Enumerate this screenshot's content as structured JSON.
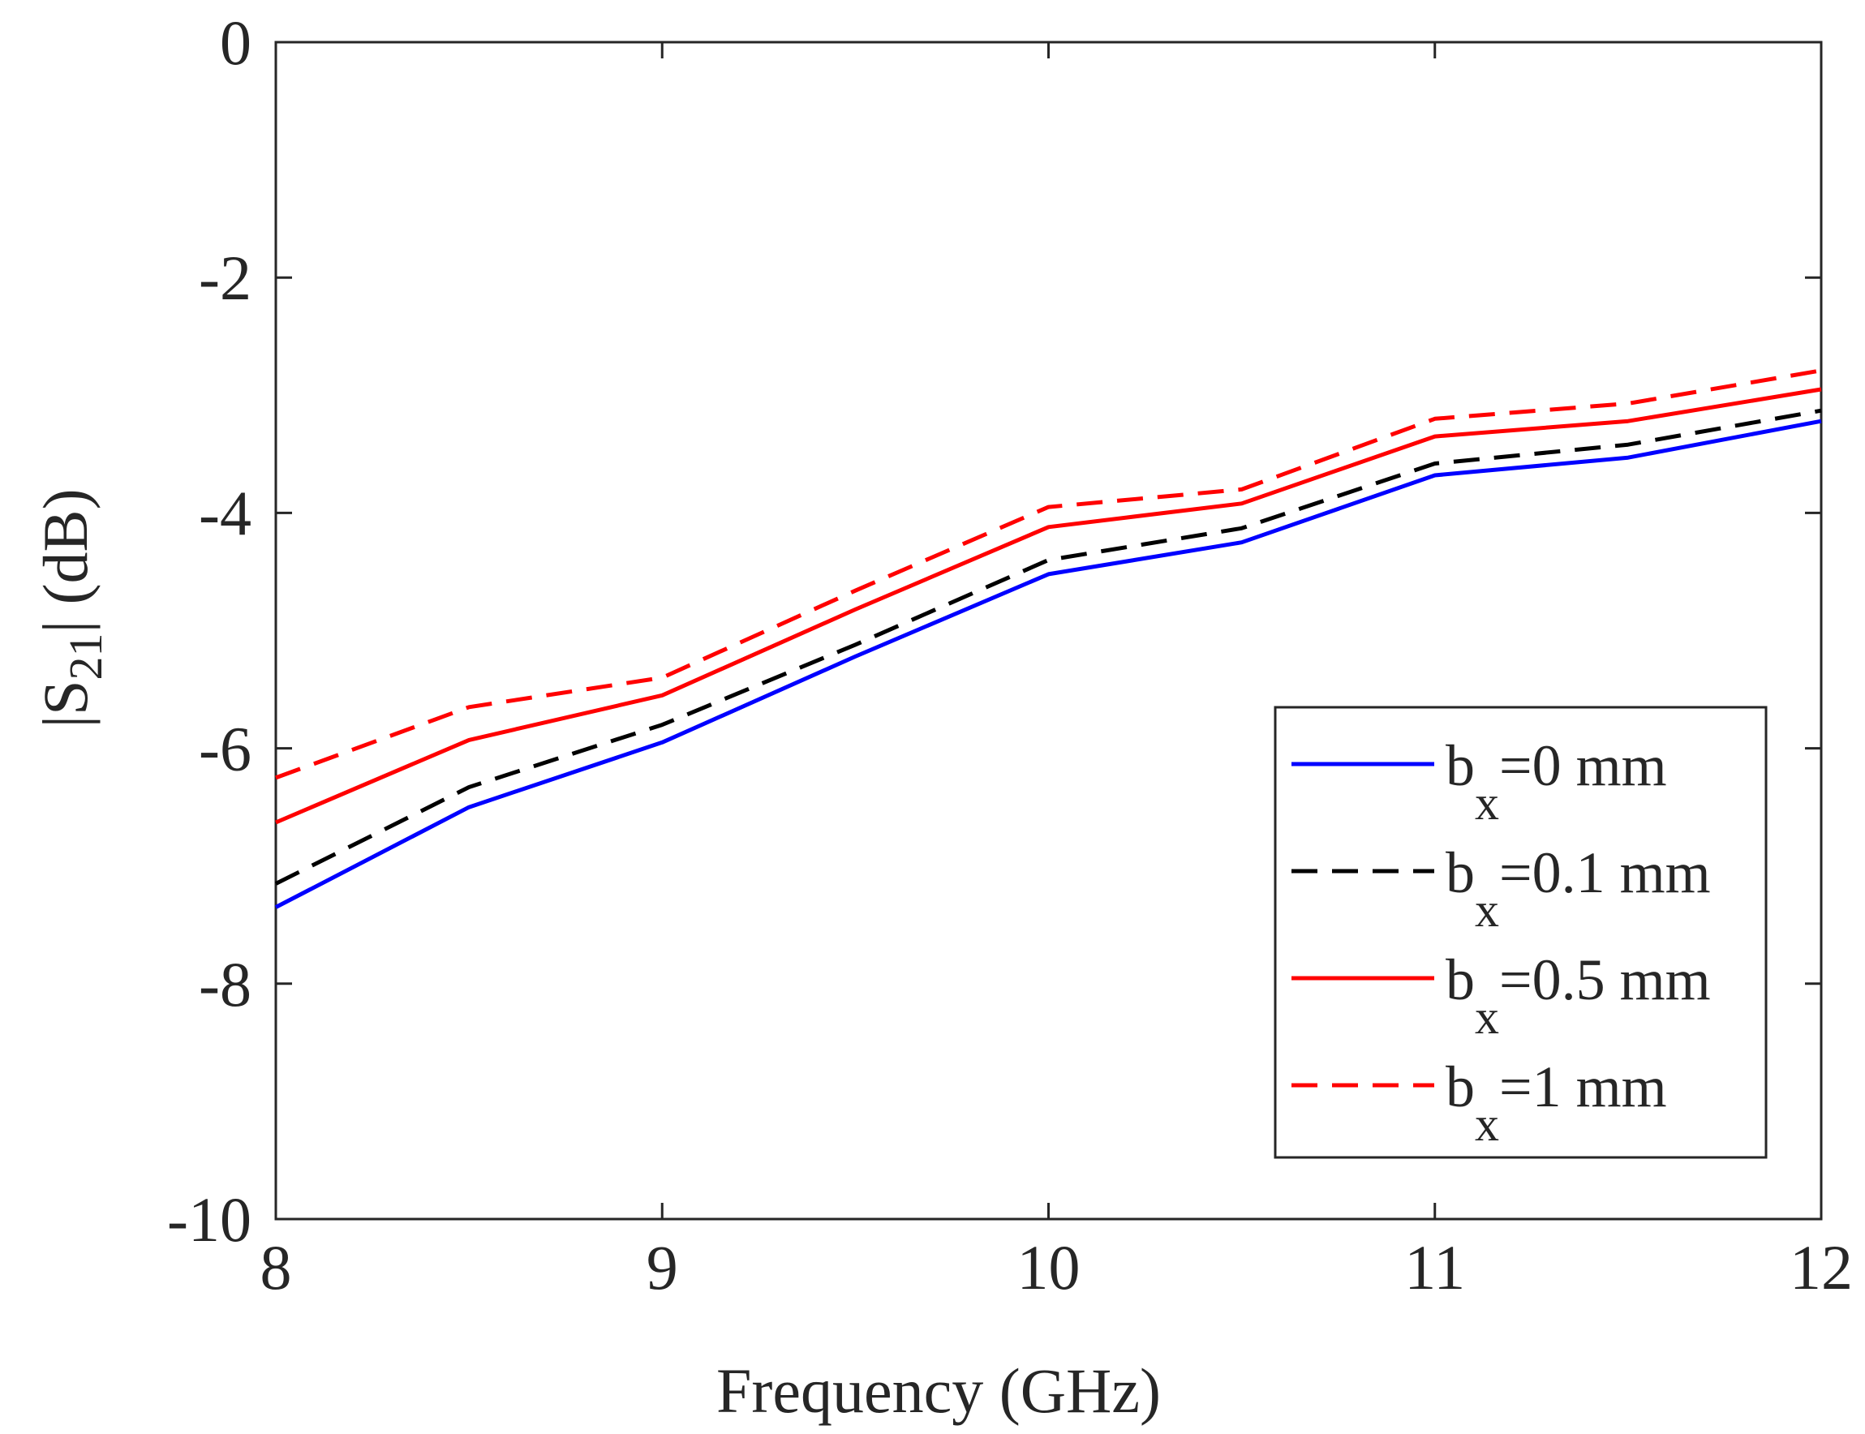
{
  "chart_data": {
    "type": "line",
    "title": "",
    "xlabel": "Frequency (GHz)",
    "ylabel": {
      "prefix": "|S",
      "sub": "21",
      "suffix": "|  (dB)"
    },
    "xlim": [
      8,
      12
    ],
    "ylim": [
      -10,
      0
    ],
    "xticks": [
      8,
      9,
      10,
      11,
      12
    ],
    "yticks": [
      0,
      -2,
      -4,
      -6,
      -8,
      -10
    ],
    "xtick_labels": [
      "8",
      "9",
      "10",
      "11",
      "12"
    ],
    "ytick_labels": [
      "0",
      "-2",
      "-4",
      "-6",
      "-8",
      "-10"
    ],
    "x": [
      8,
      8.5,
      9,
      9.5,
      10,
      10.5,
      11,
      11.5,
      12
    ],
    "series": [
      {
        "name": "b_x =0 mm",
        "label_main": "b",
        "label_sub": "x",
        "label_rest": "=0 mm",
        "color": "#0000ff",
        "dash": "solid",
        "values": [
          -7.35,
          -6.5,
          -5.95,
          -5.22,
          -4.52,
          -4.25,
          -3.68,
          -3.53,
          -3.22
        ]
      },
      {
        "name": "b_x =0.1 mm",
        "label_main": "b",
        "label_sub": "x",
        "label_rest": "=0.1 mm",
        "color": "#000000",
        "dash": "dashed",
        "values": [
          -7.15,
          -6.33,
          -5.8,
          -5.12,
          -4.4,
          -4.13,
          -3.58,
          -3.42,
          -3.13
        ]
      },
      {
        "name": "b_x =0.5 mm",
        "label_main": "b",
        "label_sub": "x",
        "label_rest": "=0.5 mm",
        "color": "#ff0000",
        "dash": "solid",
        "values": [
          -6.63,
          -5.93,
          -5.55,
          -4.82,
          -4.12,
          -3.92,
          -3.35,
          -3.22,
          -2.95
        ]
      },
      {
        "name": "b_x =1 mm",
        "label_main": "b",
        "label_sub": "x",
        "label_rest": "=1 mm",
        "color": "#ff0000",
        "dash": "dashed",
        "values": [
          -6.25,
          -5.65,
          -5.4,
          -4.66,
          -3.95,
          -3.8,
          -3.2,
          -3.07,
          -2.79
        ]
      }
    ],
    "legend_position": "bottom-right",
    "grid": false
  }
}
